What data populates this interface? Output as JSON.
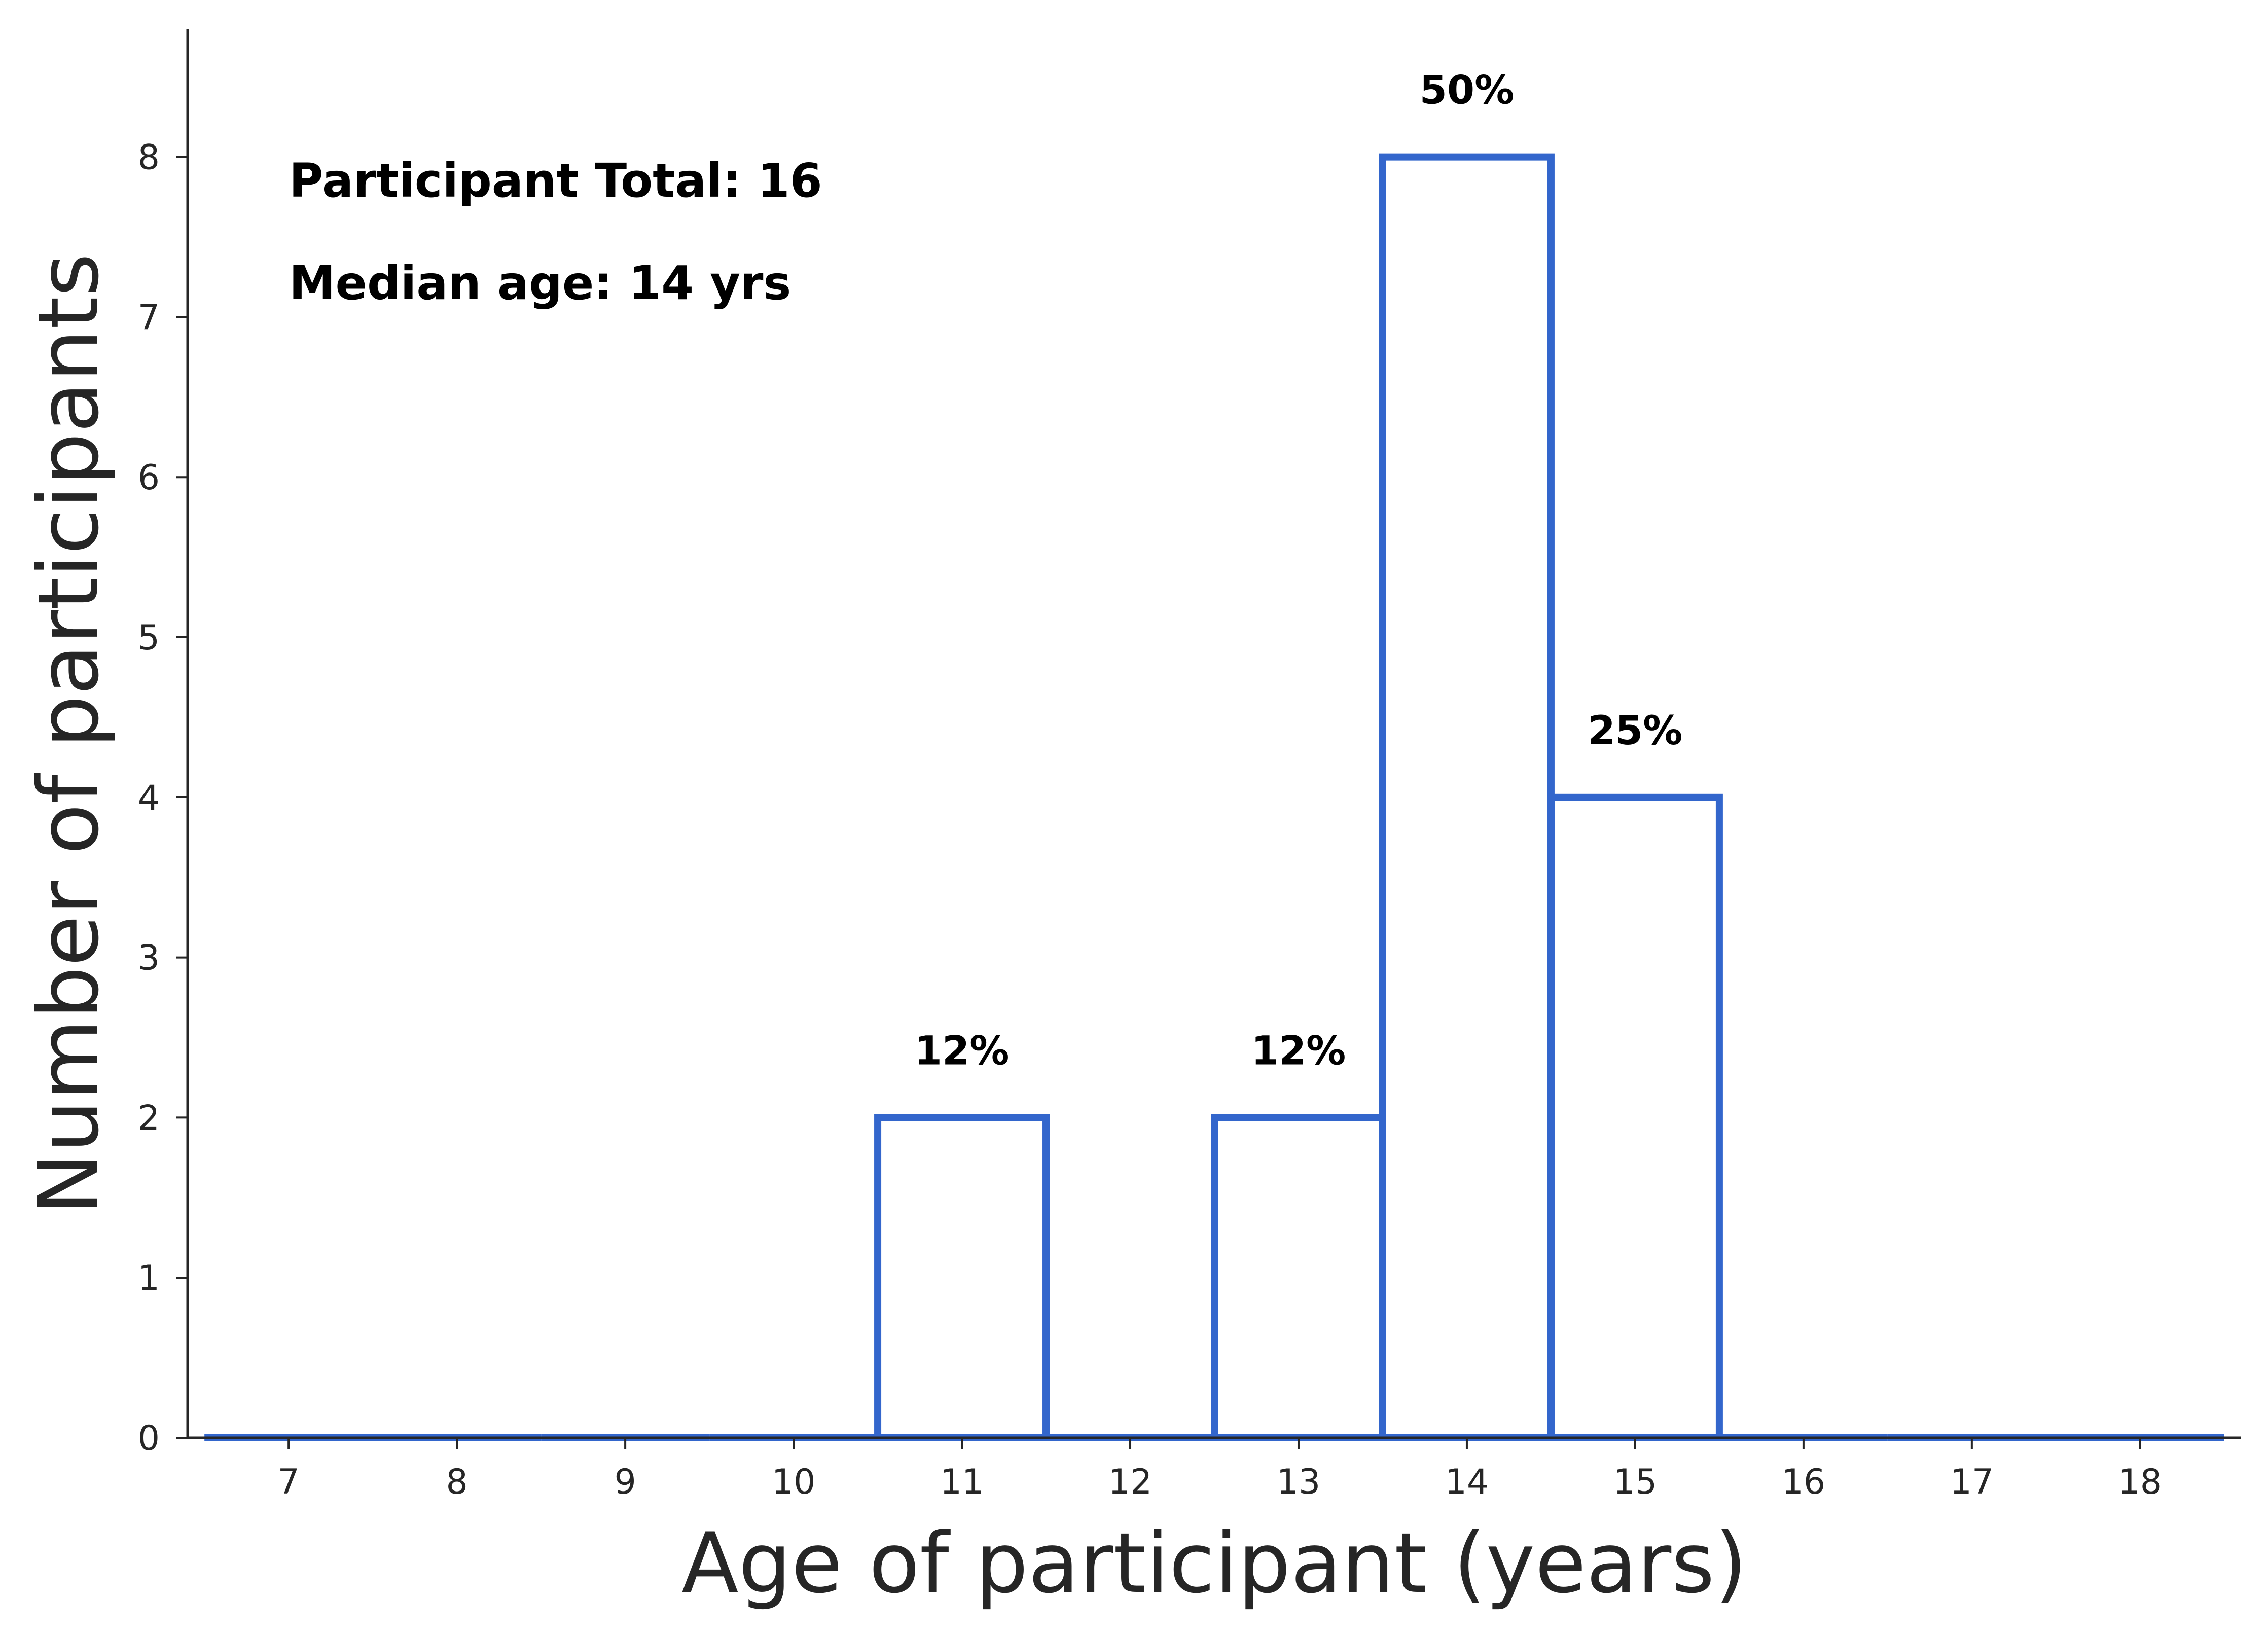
{
  "chart_data": {
    "type": "bar",
    "subtype": "histogram-step",
    "categories": [
      "7",
      "8",
      "9",
      "10",
      "11",
      "12",
      "13",
      "14",
      "15",
      "16",
      "17",
      "18"
    ],
    "x": [
      7,
      8,
      9,
      10,
      11,
      12,
      13,
      14,
      15,
      16,
      17,
      18
    ],
    "values": [
      0,
      0,
      0,
      0,
      2,
      0,
      2,
      8,
      4,
      0,
      0,
      0
    ],
    "bar_labels": [
      {
        "x": 11,
        "text": "12%"
      },
      {
        "x": 13,
        "text": "12%"
      },
      {
        "x": 14,
        "text": "50%"
      },
      {
        "x": 15,
        "text": "25%"
      }
    ],
    "xlabel": "Age of participant (years)",
    "ylabel": "Number of participants",
    "xlim": [
      6.4,
      18.6
    ],
    "ylim": [
      0,
      8.8
    ],
    "yticks": [
      0,
      1,
      2,
      3,
      4,
      5,
      6,
      7,
      8
    ],
    "annotations": [
      "Participant Total: 16",
      "Median age: 14 yrs"
    ],
    "grid": false,
    "color": "#3366cc"
  }
}
